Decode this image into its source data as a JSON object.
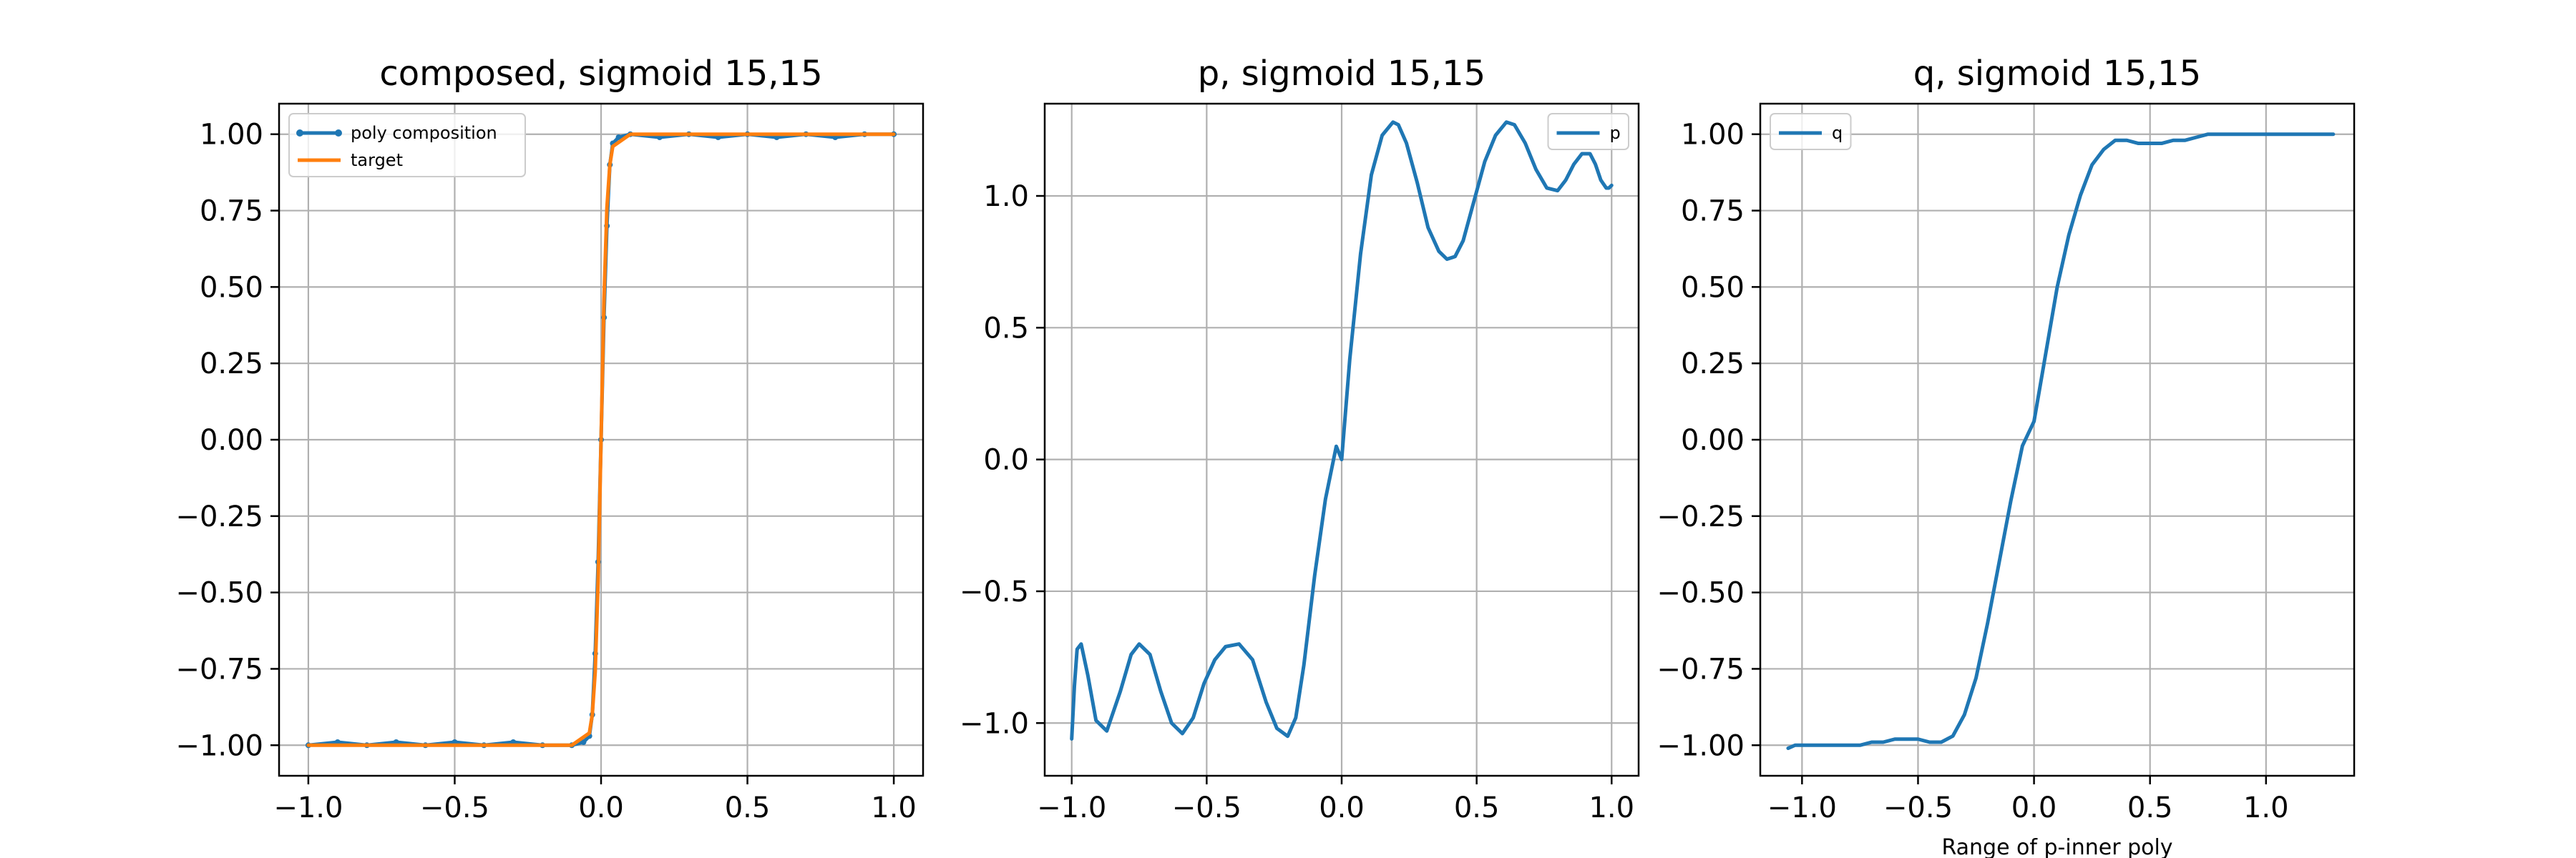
{
  "chart_data": [
    {
      "type": "line",
      "title": "composed, sigmoid 15,15",
      "xlabel": "",
      "ylabel": "",
      "xlim": [
        -1.1,
        1.1
      ],
      "ylim": [
        -1.1,
        1.1
      ],
      "xticks": [
        -1.0,
        -0.5,
        0.0,
        0.5,
        1.0
      ],
      "xtick_labels": [
        "−1.0",
        "−0.5",
        "0.0",
        "0.5",
        "1.0"
      ],
      "yticks": [
        -1.0,
        -0.75,
        -0.5,
        -0.25,
        0.0,
        0.25,
        0.5,
        0.75,
        1.0
      ],
      "ytick_labels": [
        "−1.00",
        "−0.75",
        "−0.50",
        "−0.25",
        "0.00",
        "0.25",
        "0.50",
        "0.75",
        "1.00"
      ],
      "grid": true,
      "legend_position": "top-left",
      "series": [
        {
          "name": "poly composition",
          "color": "#1f77b4",
          "marker": "dot",
          "x": [
            -1.0,
            -0.9,
            -0.8,
            -0.7,
            -0.6,
            -0.5,
            -0.4,
            -0.3,
            -0.2,
            -0.1,
            -0.06,
            -0.04,
            -0.03,
            -0.02,
            -0.01,
            0.0,
            0.01,
            0.02,
            0.03,
            0.04,
            0.06,
            0.1,
            0.2,
            0.3,
            0.4,
            0.5,
            0.6,
            0.7,
            0.8,
            0.9,
            1.0
          ],
          "y": [
            -1.0,
            -0.99,
            -1.0,
            -0.99,
            -1.0,
            -0.99,
            -1.0,
            -0.99,
            -1.0,
            -1.0,
            -0.99,
            -0.97,
            -0.9,
            -0.7,
            -0.4,
            0.0,
            0.4,
            0.7,
            0.9,
            0.97,
            0.99,
            1.0,
            0.99,
            1.0,
            0.99,
            1.0,
            0.99,
            1.0,
            0.99,
            1.0,
            1.0
          ]
        },
        {
          "name": "target",
          "color": "#ff7f0e",
          "marker": "none",
          "x": [
            -1.0,
            -0.5,
            -0.1,
            -0.04,
            -0.03,
            -0.02,
            -0.01,
            0.0,
            0.01,
            0.02,
            0.03,
            0.04,
            0.1,
            0.5,
            1.0
          ],
          "y": [
            -1.0,
            -1.0,
            -1.0,
            -0.96,
            -0.9,
            -0.76,
            -0.46,
            0.0,
            0.46,
            0.76,
            0.9,
            0.96,
            1.0,
            1.0,
            1.0
          ]
        }
      ]
    },
    {
      "type": "line",
      "title": "p, sigmoid 15,15",
      "xlabel": "",
      "ylabel": "",
      "xlim": [
        -1.1,
        1.1
      ],
      "ylim": [
        -1.2,
        1.35
      ],
      "xticks": [
        -1.0,
        -0.5,
        0.0,
        0.5,
        1.0
      ],
      "xtick_labels": [
        "−1.0",
        "−0.5",
        "0.0",
        "0.5",
        "1.0"
      ],
      "yticks": [
        -1.0,
        -0.5,
        0.0,
        0.5,
        1.0
      ],
      "ytick_labels": [
        "−1.0",
        "−0.5",
        "0.0",
        "0.5",
        "1.0"
      ],
      "grid": true,
      "legend_position": "top-right",
      "series": [
        {
          "name": "p",
          "color": "#1f77b4",
          "marker": "none",
          "x": [
            -1.0,
            -0.99,
            -0.98,
            -0.965,
            -0.94,
            -0.91,
            -0.87,
            -0.82,
            -0.78,
            -0.75,
            -0.71,
            -0.67,
            -0.63,
            -0.59,
            -0.55,
            -0.51,
            -0.47,
            -0.43,
            -0.38,
            -0.33,
            -0.28,
            -0.24,
            -0.2,
            -0.17,
            -0.14,
            -0.1,
            -0.06,
            -0.02,
            0.0,
            0.03,
            0.07,
            0.11,
            0.15,
            0.19,
            0.21,
            0.24,
            0.28,
            0.32,
            0.36,
            0.39,
            0.42,
            0.45,
            0.49,
            0.53,
            0.57,
            0.61,
            0.64,
            0.68,
            0.72,
            0.76,
            0.8,
            0.83,
            0.86,
            0.89,
            0.92,
            0.94,
            0.96,
            0.98,
            0.99,
            1.0
          ],
          "y": [
            -1.06,
            -0.86,
            -0.72,
            -0.7,
            -0.82,
            -0.99,
            -1.03,
            -0.88,
            -0.74,
            -0.7,
            -0.74,
            -0.88,
            -1.0,
            -1.04,
            -0.98,
            -0.85,
            -0.76,
            -0.71,
            -0.7,
            -0.76,
            -0.92,
            -1.02,
            -1.05,
            -0.98,
            -0.78,
            -0.44,
            -0.15,
            0.05,
            0.0,
            0.38,
            0.78,
            1.08,
            1.23,
            1.28,
            1.27,
            1.2,
            1.05,
            0.88,
            0.79,
            0.76,
            0.77,
            0.83,
            0.98,
            1.13,
            1.23,
            1.28,
            1.27,
            1.2,
            1.1,
            1.03,
            1.02,
            1.06,
            1.12,
            1.16,
            1.16,
            1.12,
            1.06,
            1.03,
            1.03,
            1.04
          ]
        }
      ]
    },
    {
      "type": "line",
      "title": "q, sigmoid 15,15",
      "xlabel": "Range of p-inner poly",
      "ylabel": "",
      "xlim": [
        -1.18,
        1.38
      ],
      "ylim": [
        -1.1,
        1.1
      ],
      "xticks": [
        -1.0,
        -0.5,
        0.0,
        0.5,
        1.0
      ],
      "xtick_labels": [
        "−1.0",
        "−0.5",
        "0.0",
        "0.5",
        "1.0"
      ],
      "yticks": [
        -1.0,
        -0.75,
        -0.5,
        -0.25,
        0.0,
        0.25,
        0.5,
        0.75,
        1.0
      ],
      "ytick_labels": [
        "−1.00",
        "−0.75",
        "−0.50",
        "−0.25",
        "0.00",
        "0.25",
        "0.50",
        "0.75",
        "1.00"
      ],
      "grid": true,
      "legend_position": "top-left",
      "series": [
        {
          "name": "q",
          "color": "#1f77b4",
          "marker": "none",
          "x": [
            -1.06,
            -1.03,
            -1.0,
            -0.95,
            -0.9,
            -0.85,
            -0.8,
            -0.75,
            -0.7,
            -0.65,
            -0.6,
            -0.55,
            -0.5,
            -0.45,
            -0.4,
            -0.35,
            -0.3,
            -0.25,
            -0.2,
            -0.15,
            -0.1,
            -0.05,
            0.0,
            0.05,
            0.1,
            0.15,
            0.2,
            0.25,
            0.3,
            0.35,
            0.4,
            0.45,
            0.5,
            0.55,
            0.6,
            0.65,
            0.7,
            0.75,
            0.8,
            0.85,
            0.9,
            0.95,
            1.0,
            1.05,
            1.1,
            1.15,
            1.2,
            1.25,
            1.29
          ],
          "y": [
            -1.01,
            -1.0,
            -1.0,
            -1.0,
            -1.0,
            -1.0,
            -1.0,
            -1.0,
            -0.99,
            -0.99,
            -0.98,
            -0.98,
            -0.98,
            -0.99,
            -0.99,
            -0.97,
            -0.9,
            -0.78,
            -0.6,
            -0.4,
            -0.2,
            -0.02,
            0.06,
            0.28,
            0.5,
            0.67,
            0.8,
            0.9,
            0.95,
            0.98,
            0.98,
            0.97,
            0.97,
            0.97,
            0.98,
            0.98,
            0.99,
            1.0,
            1.0,
            1.0,
            1.0,
            1.0,
            1.0,
            1.0,
            1.0,
            1.0,
            1.0,
            1.0,
            1.0
          ]
        }
      ]
    }
  ]
}
